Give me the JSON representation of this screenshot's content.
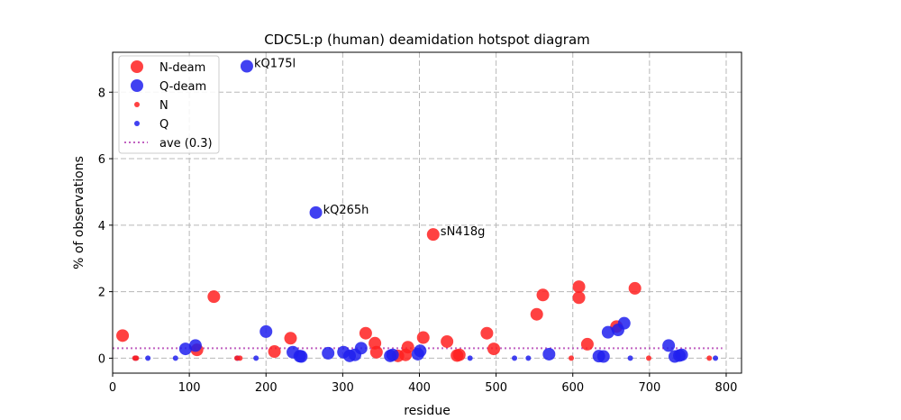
{
  "chart_data": {
    "type": "scatter",
    "title": "CDC5L:p (human) deamidation hotspot diagram",
    "xlabel": "residue",
    "ylabel": "% of observations",
    "xlim": [
      0,
      820
    ],
    "ylim": [
      -0.45,
      9.2
    ],
    "xticks": [
      0,
      100,
      200,
      300,
      400,
      500,
      600,
      700,
      800
    ],
    "yticks": [
      0,
      2,
      4,
      6,
      8
    ],
    "grid": true,
    "legend_position": "top-left",
    "colors": {
      "N": "#ff2020",
      "Q": "#2020ee",
      "ave": "#c060c0"
    },
    "legend": [
      {
        "label": "N-deam",
        "kind": "large",
        "color": "#ff2020"
      },
      {
        "label": "Q-deam",
        "kind": "large",
        "color": "#2020ee"
      },
      {
        "label": "N",
        "kind": "small",
        "color": "#ff2020"
      },
      {
        "label": "Q",
        "kind": "small",
        "color": "#2020ee"
      },
      {
        "label": "ave (0.3)",
        "kind": "line",
        "color": "#c060c0"
      }
    ],
    "average": 0.3,
    "series": [
      {
        "name": "N-deam",
        "color": "#ff2020",
        "points": [
          [
            13,
            0.68
          ],
          [
            110,
            0.25
          ],
          [
            132,
            1.85
          ],
          [
            211,
            0.2
          ],
          [
            232,
            0.6
          ],
          [
            330,
            0.75
          ],
          [
            342,
            0.45
          ],
          [
            344,
            0.18
          ],
          [
            372,
            0.07
          ],
          [
            382,
            0.1
          ],
          [
            385,
            0.33
          ],
          [
            405,
            0.62
          ],
          [
            418,
            3.72
          ],
          [
            436,
            0.5
          ],
          [
            449,
            0.08
          ],
          [
            452,
            0.1
          ],
          [
            488,
            0.75
          ],
          [
            497,
            0.28
          ],
          [
            553,
            1.32
          ],
          [
            561,
            1.9
          ],
          [
            608,
            2.15
          ],
          [
            608,
            1.82
          ],
          [
            619,
            0.42
          ],
          [
            657,
            0.95
          ],
          [
            681,
            2.1
          ]
        ]
      },
      {
        "name": "Q-deam",
        "color": "#2020ee",
        "points": [
          [
            95,
            0.28
          ],
          [
            108,
            0.38
          ],
          [
            175,
            8.78
          ],
          [
            200,
            0.8
          ],
          [
            235,
            0.18
          ],
          [
            244,
            0.06
          ],
          [
            246,
            0.05
          ],
          [
            265,
            4.38
          ],
          [
            281,
            0.15
          ],
          [
            301,
            0.18
          ],
          [
            309,
            0.07
          ],
          [
            316,
            0.1
          ],
          [
            324,
            0.3
          ],
          [
            362,
            0.07
          ],
          [
            365,
            0.1
          ],
          [
            398,
            0.12
          ],
          [
            401,
            0.22
          ],
          [
            569,
            0.12
          ],
          [
            634,
            0.06
          ],
          [
            640,
            0.05
          ],
          [
            646,
            0.78
          ],
          [
            659,
            0.85
          ],
          [
            667,
            1.05
          ],
          [
            725,
            0.38
          ],
          [
            733,
            0.05
          ],
          [
            739,
            0.08
          ],
          [
            742,
            0.1
          ]
        ]
      },
      {
        "name": "N",
        "color": "#ff2020",
        "points": [
          [
            29,
            0
          ],
          [
            31,
            0
          ],
          [
            162,
            0
          ],
          [
            166,
            0
          ],
          [
            598,
            0
          ],
          [
            699,
            0
          ],
          [
            778,
            0
          ]
        ]
      },
      {
        "name": "Q",
        "color": "#2020ee",
        "points": [
          [
            30,
            0
          ],
          [
            46,
            0
          ],
          [
            82,
            0
          ],
          [
            163,
            0
          ],
          [
            187,
            0
          ],
          [
            466,
            0
          ],
          [
            524,
            0
          ],
          [
            542,
            0
          ],
          [
            675,
            0
          ],
          [
            786,
            0
          ]
        ]
      }
    ],
    "annotations": [
      {
        "text": "kQ175l",
        "x": 175,
        "y": 8.78
      },
      {
        "text": "kQ265h",
        "x": 265,
        "y": 4.38
      },
      {
        "text": "sN418g",
        "x": 418,
        "y": 3.72
      }
    ]
  }
}
